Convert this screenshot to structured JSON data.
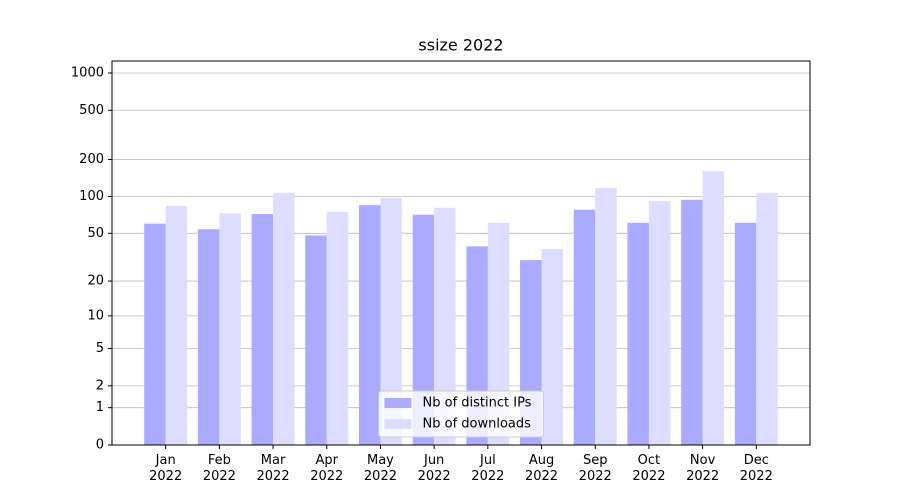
{
  "chart_data": {
    "type": "bar",
    "title": "ssize 2022",
    "categories": [
      "Jan 2022",
      "Feb 2022",
      "Mar 2022",
      "Apr 2022",
      "May 2022",
      "Jun 2022",
      "Jul 2022",
      "Aug 2022",
      "Sep 2022",
      "Oct 2022",
      "Nov 2022",
      "Dec 2022"
    ],
    "series": [
      {
        "name": "Nb of distinct IPs",
        "color": "#aaaaff",
        "values": [
          60,
          54,
          72,
          48,
          85,
          71,
          39,
          30,
          78,
          61,
          94,
          61
        ]
      },
      {
        "name": "Nb of downloads",
        "color": "#ddddff",
        "values": [
          84,
          73,
          107,
          75,
          97,
          81,
          61,
          37,
          117,
          92,
          161,
          107
        ]
      }
    ],
    "yscale": "log1p",
    "ylim": [
      0,
      1250
    ],
    "yticks": [
      0,
      1,
      2,
      5,
      10,
      20,
      50,
      100,
      200,
      500,
      1000
    ],
    "grid": true,
    "legend": "lower center"
  }
}
